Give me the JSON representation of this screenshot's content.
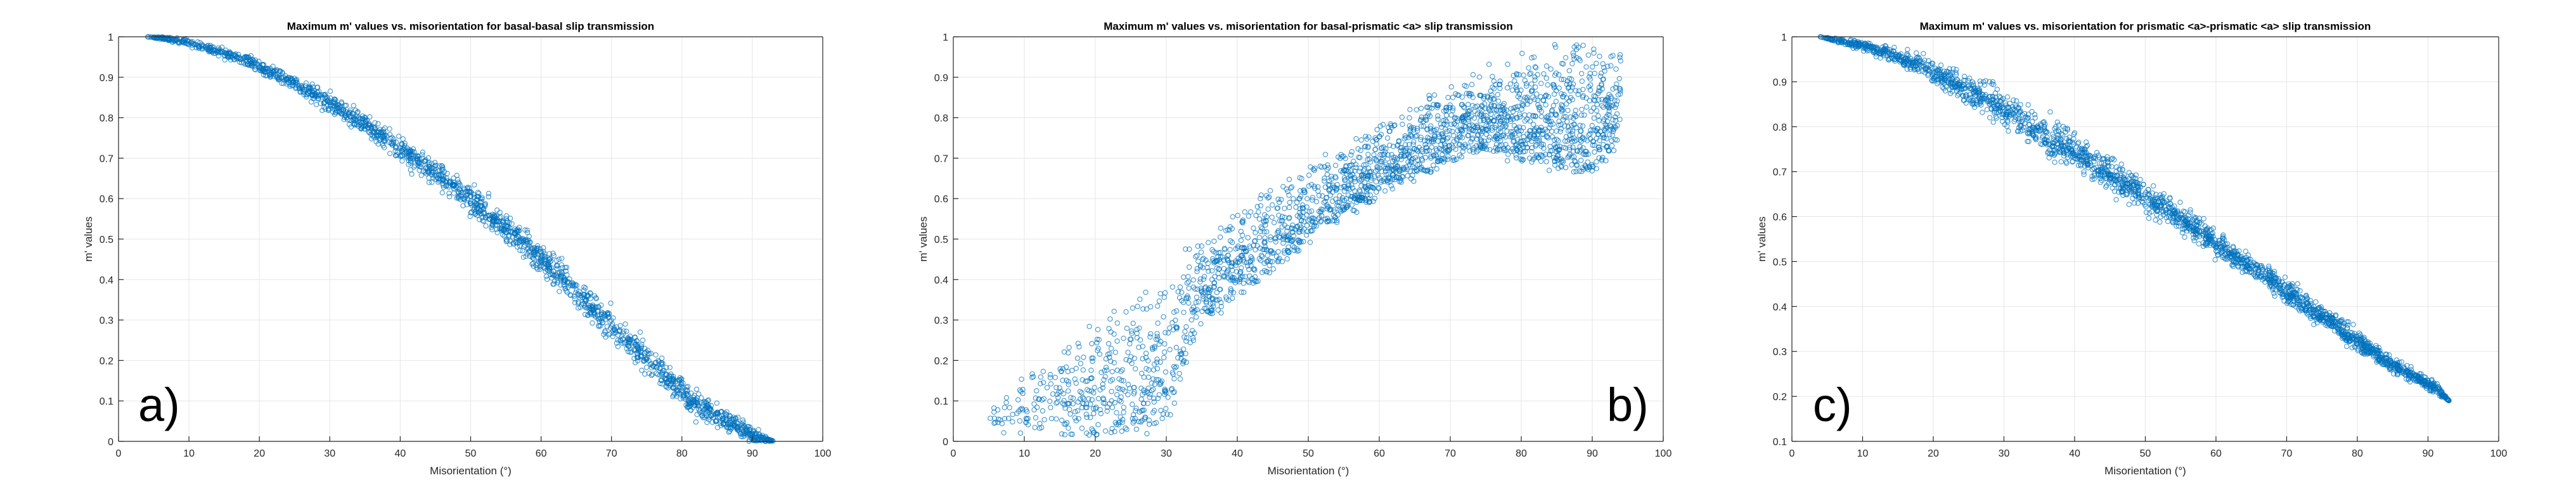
{
  "chart_data": [
    {
      "type": "scatter",
      "title": "Maximum m' values vs. misorientation for basal-basal slip transmission",
      "xlabel": "Misorientation (°)",
      "ylabel": "m' values",
      "xlim": [
        0,
        100
      ],
      "ylim": [
        0,
        1
      ],
      "xticks": [
        "0",
        "10",
        "20",
        "30",
        "40",
        "50",
        "60",
        "70",
        "80",
        "90",
        "100"
      ],
      "yticks": [
        "0",
        "0.1",
        "0.2",
        "0.3",
        "0.4",
        "0.5",
        "0.6",
        "0.7",
        "0.8",
        "0.9",
        "1"
      ],
      "grid": true,
      "panel_label": "a)",
      "marker": "open-circle",
      "color": "#0072BD",
      "series": [
        {
          "x": [
            4,
            7,
            10,
            13,
            16,
            19,
            22,
            25,
            28,
            31,
            34,
            37,
            40,
            43,
            46,
            49,
            52,
            55,
            58,
            61,
            64,
            67,
            70,
            73,
            76,
            79,
            82,
            85,
            88,
            91,
            93
          ],
          "y_center": [
            1.0,
            0.995,
            0.985,
            0.97,
            0.955,
            0.935,
            0.91,
            0.885,
            0.855,
            0.825,
            0.795,
            0.76,
            0.725,
            0.69,
            0.65,
            0.61,
            0.57,
            0.525,
            0.48,
            0.435,
            0.385,
            0.335,
            0.285,
            0.235,
            0.185,
            0.14,
            0.095,
            0.06,
            0.035,
            0.01,
            0.0
          ],
          "y_spread": [
            0.0,
            0.005,
            0.008,
            0.01,
            0.012,
            0.014,
            0.016,
            0.018,
            0.02,
            0.022,
            0.024,
            0.026,
            0.028,
            0.03,
            0.03,
            0.03,
            0.032,
            0.032,
            0.032,
            0.032,
            0.034,
            0.034,
            0.034,
            0.034,
            0.034,
            0.032,
            0.03,
            0.025,
            0.02,
            0.015,
            0.0
          ],
          "x_range": [
            4,
            93
          ],
          "n_points": 1900
        }
      ]
    },
    {
      "type": "scatter",
      "title": "Maximum m' values vs. misorientation for basal-prismatic <a> slip transmission",
      "xlabel": "Misorientation (°)",
      "ylabel": "m' values",
      "xlim": [
        0,
        100
      ],
      "ylim": [
        0,
        1
      ],
      "xticks": [
        "0",
        "10",
        "20",
        "30",
        "40",
        "50",
        "60",
        "70",
        "80",
        "90",
        "100"
      ],
      "yticks": [
        "0",
        "0.1",
        "0.2",
        "0.3",
        "0.4",
        "0.5",
        "0.6",
        "0.7",
        "0.8",
        "0.9",
        "1"
      ],
      "grid": true,
      "panel_label": "b)",
      "marker": "open-circle",
      "color": "#0072BD",
      "series": [
        {
          "x": [
            5,
            10,
            15,
            20,
            25,
            30,
            35,
            40,
            45,
            50,
            55,
            60,
            65,
            70,
            75,
            80,
            85,
            90,
            94
          ],
          "y_upper": [
            0.09,
            0.17,
            0.24,
            0.31,
            0.38,
            0.44,
            0.51,
            0.57,
            0.63,
            0.69,
            0.74,
            0.79,
            0.84,
            0.88,
            0.92,
            0.95,
            0.98,
            1.0,
            0.99
          ],
          "y_lower": [
            0.04,
            0.03,
            0.02,
            0.02,
            0.02,
            0.05,
            0.3,
            0.36,
            0.43,
            0.5,
            0.56,
            0.61,
            0.66,
            0.7,
            0.72,
            0.7,
            0.68,
            0.66,
            0.75
          ],
          "x_range": [
            5,
            94
          ],
          "n_points": 2400
        }
      ]
    },
    {
      "type": "scatter",
      "title": "Maximum m' values vs. misorientation for prismatic <a>-prismatic <a> slip transmission",
      "xlabel": "Misorientation (°)",
      "ylabel": "m' values",
      "xlim": [
        0,
        100
      ],
      "ylim": [
        0.1,
        1
      ],
      "xticks": [
        "0",
        "10",
        "20",
        "30",
        "40",
        "50",
        "60",
        "70",
        "80",
        "90",
        "100"
      ],
      "yticks": [
        "0.1",
        "0.2",
        "0.3",
        "0.4",
        "0.5",
        "0.6",
        "0.7",
        "0.8",
        "0.9",
        "1"
      ],
      "grid": true,
      "panel_label": "c)",
      "marker": "open-circle",
      "color": "#0072BD",
      "series": [
        {
          "x": [
            4,
            7,
            10,
            13,
            16,
            19,
            22,
            25,
            28,
            31,
            34,
            37,
            40,
            43,
            46,
            49,
            52,
            55,
            58,
            61,
            64,
            67,
            70,
            73,
            76,
            79,
            82,
            85,
            88,
            91,
            93
          ],
          "y_center": [
            1.0,
            0.99,
            0.98,
            0.965,
            0.95,
            0.93,
            0.905,
            0.88,
            0.855,
            0.83,
            0.8,
            0.77,
            0.745,
            0.715,
            0.685,
            0.655,
            0.625,
            0.595,
            0.565,
            0.53,
            0.5,
            0.465,
            0.435,
            0.4,
            0.37,
            0.335,
            0.3,
            0.27,
            0.245,
            0.22,
            0.19
          ],
          "y_spread": [
            0.0,
            0.006,
            0.01,
            0.014,
            0.018,
            0.022,
            0.026,
            0.03,
            0.034,
            0.036,
            0.038,
            0.038,
            0.036,
            0.034,
            0.032,
            0.03,
            0.028,
            0.026,
            0.026,
            0.026,
            0.024,
            0.024,
            0.022,
            0.022,
            0.02,
            0.02,
            0.018,
            0.016,
            0.014,
            0.012,
            0.0
          ],
          "x_range": [
            4,
            93
          ],
          "n_points": 2300
        }
      ]
    }
  ]
}
